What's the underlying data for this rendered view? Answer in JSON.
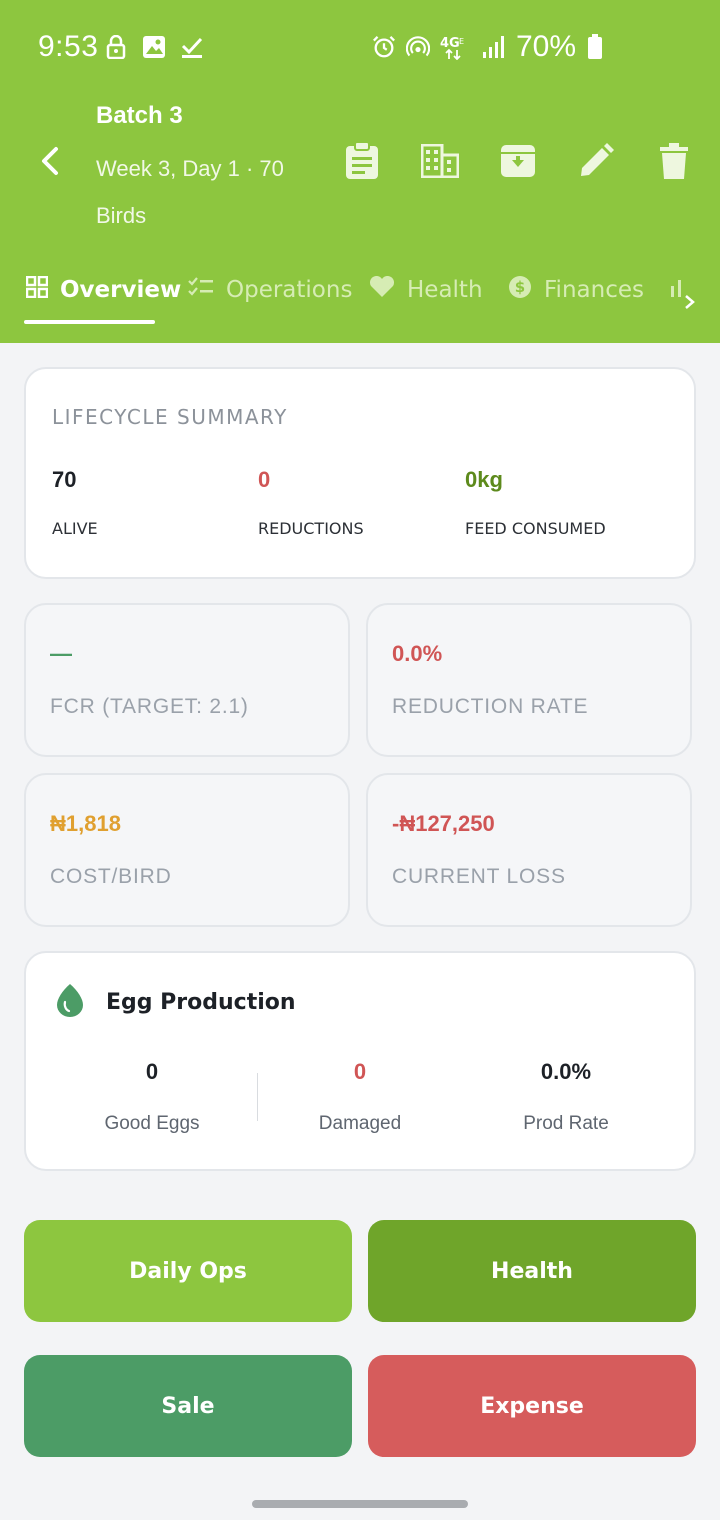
{
  "status_bar": {
    "time": "9:53",
    "battery": "70%",
    "left_icons": [
      "lock-icon",
      "image-icon",
      "check-icon"
    ],
    "right_icons": [
      "alarm-icon",
      "hotspot-icon",
      "4g-icon",
      "signal-icon",
      "battery-icon"
    ]
  },
  "header": {
    "title": "Batch 3",
    "subtitle": "Week 3, Day 1 · 70 Birds",
    "actions": [
      "clipboard-icon",
      "building-icon",
      "archive-icon",
      "edit-icon",
      "delete-icon"
    ]
  },
  "tabs": [
    {
      "label": "Overview",
      "icon": "grid-icon",
      "active": true
    },
    {
      "label": "Operations",
      "icon": "checklist-icon",
      "active": false
    },
    {
      "label": "Health",
      "icon": "heart-icon",
      "active": false
    },
    {
      "label": "Finances",
      "icon": "dollar-icon",
      "active": false
    }
  ],
  "lifecycle": {
    "title": "LIFECYCLE SUMMARY",
    "alive": {
      "value": "70",
      "label": "ALIVE"
    },
    "reductions": {
      "value": "0",
      "label": "REDUCTIONS"
    },
    "feed": {
      "value": "0kg",
      "label": "FEED CONSUMED"
    }
  },
  "metrics": {
    "fcr": {
      "value": "—",
      "label": "FCR (TARGET: 2.1)"
    },
    "reduction_rate": {
      "value": "0.0%",
      "label": "REDUCTION RATE"
    },
    "cost_bird": {
      "value": "₦1,818",
      "label": "COST/BIRD"
    },
    "current_loss": {
      "value": "-₦127,250",
      "label": "CURRENT LOSS"
    }
  },
  "eggs": {
    "title": "Egg Production",
    "good": {
      "value": "0",
      "label": "Good Eggs"
    },
    "damaged": {
      "value": "0",
      "label": "Damaged"
    },
    "rate": {
      "value": "0.0%",
      "label": "Prod Rate"
    }
  },
  "buttons": {
    "daily_ops": "Daily Ops",
    "health": "Health",
    "sale": "Sale",
    "expense": "Expense"
  },
  "colors": {
    "brand": "#8dc63f",
    "dark_green": "#6fa52a",
    "sale_green": "#4c9c66",
    "expense_red": "#d65c5c",
    "loss_red": "#d05555",
    "cost_amber": "#e0a030",
    "feed_olive": "#5d8a1c"
  }
}
